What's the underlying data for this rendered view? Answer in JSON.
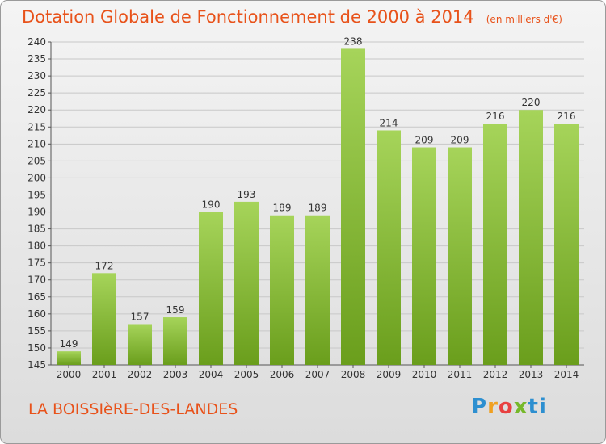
{
  "title": "Dotation Globale de Fonctionnement de 2000 à 2014",
  "subtitle": "(en milliers d'€)",
  "commune": "LA BOISSIèRE-DES-LANDES",
  "logo": {
    "p": "P",
    "r": "r",
    "o": "o",
    "x": "x",
    "i": "i",
    "t": "ti"
  },
  "colors": {
    "title": "#e8521a",
    "bar_top": "#a6d45a",
    "bar_bottom": "#6a9e1c",
    "grid": "#c8c8c8"
  },
  "chart_data": {
    "type": "bar",
    "title": "Dotation Globale de Fonctionnement de 2000 à 2014",
    "subtitle": "(en milliers d'€)",
    "categories": [
      "2000",
      "2001",
      "2002",
      "2003",
      "2004",
      "2005",
      "2006",
      "2007",
      "2008",
      "2009",
      "2010",
      "2011",
      "2012",
      "2013",
      "2014"
    ],
    "values": [
      149,
      172,
      157,
      159,
      190,
      193,
      189,
      189,
      238,
      214,
      209,
      209,
      216,
      220,
      216
    ],
    "ylim": [
      145,
      240
    ],
    "yticks": [
      145,
      150,
      155,
      160,
      165,
      170,
      175,
      180,
      185,
      190,
      195,
      200,
      205,
      210,
      215,
      220,
      225,
      230,
      235,
      240
    ],
    "grid": true,
    "data_labels": true,
    "xlabel": "",
    "ylabel": ""
  }
}
